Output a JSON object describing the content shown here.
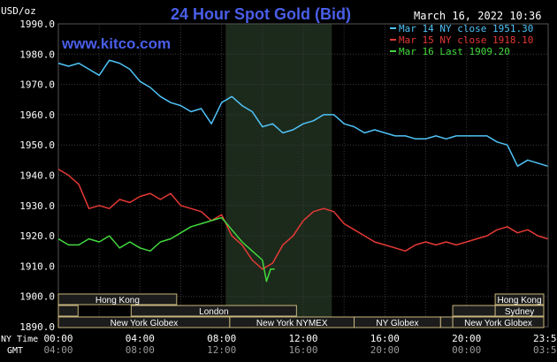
{
  "chart_data": {
    "type": "line",
    "title": "24 Hour Spot Gold (Bid)",
    "date_label": "March 16, 2022 10:36",
    "watermark": "www.kitco.com",
    "ylabel": "USD/oz",
    "ylim": [
      1890.0,
      1990.0
    ],
    "y_ticks": [
      "1990.0",
      "1980.0",
      "1970.0",
      "1960.0",
      "1950.0",
      "1940.0",
      "1930.0",
      "1920.0",
      "1910.0",
      "1900.0",
      "1890.0"
    ],
    "x_ticks_ny": [
      "00:00",
      "04:00",
      "08:00",
      "12:00",
      "16:00",
      "20:00",
      "23:59"
    ],
    "x_ticks_gmt": [
      "04:00",
      "08:00",
      "12:00",
      "16:00",
      "20:00",
      "00:00",
      "03:59"
    ],
    "ny_time_label": "NY Time",
    "gmt_label": "GMT",
    "legend_placement": "top-right",
    "series": [
      {
        "name": "Mar 14 NY close 1951.30",
        "color": "#4fc3f7",
        "x": [
          0,
          0.5,
          1,
          1.5,
          2,
          2.5,
          3,
          3.5,
          4,
          4.5,
          5,
          5.5,
          6,
          6.5,
          7,
          7.5,
          8,
          8.5,
          9,
          9.5,
          10,
          10.5,
          11,
          11.5,
          12,
          12.5,
          13,
          13.5,
          14,
          14.5,
          15,
          15.5,
          16,
          16.5,
          17,
          17.5,
          18,
          18.5,
          19,
          19.5,
          20,
          20.5,
          21,
          21.5,
          22,
          22.5,
          23,
          23.5,
          23.98
        ],
        "y": [
          1977,
          1976,
          1977,
          1975,
          1973,
          1978,
          1977,
          1975,
          1971,
          1969,
          1966,
          1964,
          1963,
          1961,
          1962,
          1957,
          1964,
          1966,
          1963,
          1961,
          1956,
          1957,
          1954,
          1955,
          1957,
          1958,
          1960,
          1960,
          1957,
          1956,
          1954,
          1955,
          1954,
          1953,
          1953,
          1952,
          1952,
          1953,
          1952,
          1953,
          1953,
          1953,
          1953,
          1951,
          1950,
          1943,
          1945,
          1944,
          1943
        ]
      },
      {
        "name": "Mar 15 NY close 1918.10",
        "color": "#e53935",
        "x": [
          0,
          0.5,
          1,
          1.5,
          2,
          2.5,
          3,
          3.5,
          4,
          4.5,
          5,
          5.5,
          6,
          6.5,
          7,
          7.5,
          8,
          8.5,
          9,
          9.5,
          10,
          10.5,
          11,
          11.5,
          12,
          12.5,
          13,
          13.5,
          14,
          14.5,
          15,
          15.5,
          16,
          16.5,
          17,
          17.5,
          18,
          18.5,
          19,
          19.5,
          20,
          20.5,
          21,
          21.5,
          22,
          22.5,
          23,
          23.5,
          23.98
        ],
        "y": [
          1942,
          1940,
          1937,
          1929,
          1930,
          1929,
          1932,
          1931,
          1933,
          1934,
          1932,
          1934,
          1930,
          1929,
          1928,
          1925,
          1927,
          1920,
          1917,
          1912,
          1909,
          1911,
          1917,
          1920,
          1925,
          1928,
          1929,
          1928,
          1924,
          1922,
          1920,
          1918,
          1917,
          1916,
          1915,
          1917,
          1918,
          1917,
          1918,
          1917,
          1918,
          1919,
          1920,
          1922,
          1923,
          1921,
          1922,
          1920,
          1919
        ]
      },
      {
        "name": "Mar 16 Last 1909.20",
        "color": "#43d93f",
        "x": [
          0,
          0.5,
          1,
          1.5,
          2,
          2.5,
          3,
          3.5,
          4,
          4.5,
          5,
          5.5,
          6,
          6.5,
          7,
          7.5,
          8,
          8.5,
          9,
          9.5,
          10,
          10.2,
          10.4,
          10.6
        ],
        "y": [
          1919,
          1917,
          1917,
          1919,
          1918,
          1920,
          1916,
          1918,
          1916,
          1915,
          1918,
          1919,
          1921,
          1923,
          1924,
          1925,
          1926,
          1922,
          1918,
          1915,
          1912,
          1905,
          1909,
          1909
        ]
      }
    ]
  },
  "sessions": [
    {
      "label": "Hong Kong",
      "row": 0,
      "start": 0,
      "end": 7.8
    },
    {
      "label": "",
      "row": 1,
      "start": 0,
      "end": 1.3
    },
    {
      "label": "London",
      "row": 1,
      "start": 4.8,
      "end": 15.7
    },
    {
      "label": "New York Globex",
      "row": 2,
      "start": 0,
      "end": 11.3
    },
    {
      "label": "New York NYMEX",
      "row": 2,
      "start": 11.3,
      "end": 19.5
    },
    {
      "label": "NY Globex",
      "row": 2,
      "start": 19.5,
      "end": 25.2
    },
    {
      "label": "Hong Kong",
      "row": 0,
      "start": 28.8,
      "end": 32.0
    },
    {
      "label": "",
      "row": 1,
      "start": 26.0,
      "end": 28.8
    },
    {
      "label": "Sydney",
      "row": 1,
      "start": 28.8,
      "end": 32.0
    },
    {
      "label": "",
      "row": 2,
      "start": 25.2,
      "end": 26.0
    },
    {
      "label": "New York Globex",
      "row": 2,
      "start": 26.0,
      "end": 32.0
    }
  ],
  "colors": {
    "background": "#000000",
    "grid": "#3a3a3a",
    "axis_text": "#ffffff",
    "title": "#4a5ee8",
    "highlight": "#1c2a1c",
    "session_fill": "#1c1c1c",
    "session_border": "#c8b67c"
  }
}
